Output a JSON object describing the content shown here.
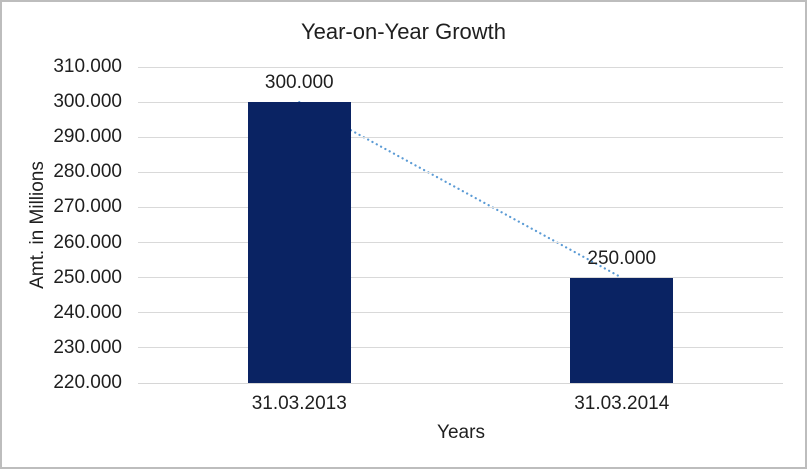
{
  "window": {
    "background": "#ffffff",
    "border_color": "#bdbdbd"
  },
  "chart_data": {
    "type": "bar",
    "title": "Year-on-Year Growth",
    "xlabel": "Years",
    "ylabel": "Amt. in Millions",
    "categories": [
      "31.03.2013",
      "31.03.2014"
    ],
    "values": [
      300000,
      250000
    ],
    "value_labels": [
      "300.000",
      "250.000"
    ],
    "ylim": [
      220000,
      310000
    ],
    "yticks": [
      {
        "value": 220000,
        "label": "220.000"
      },
      {
        "value": 230000,
        "label": "230.000"
      },
      {
        "value": 240000,
        "label": "240.000"
      },
      {
        "value": 250000,
        "label": "250.000"
      },
      {
        "value": 260000,
        "label": "260.000"
      },
      {
        "value": 270000,
        "label": "270.000"
      },
      {
        "value": 280000,
        "label": "280.000"
      },
      {
        "value": 290000,
        "label": "290.000"
      },
      {
        "value": 300000,
        "label": "300.000"
      },
      {
        "value": 310000,
        "label": "310.000"
      }
    ],
    "grid": true,
    "legend_position": "none",
    "bar_color": "#0a2363",
    "gridline_color": "#d9d9d9",
    "axis_line_color": "#d6d6d6",
    "text_color": "#1f1f1f",
    "trendline": {
      "style": "dotted",
      "color": "#5b9bd5",
      "connects": "bar-tops"
    }
  }
}
